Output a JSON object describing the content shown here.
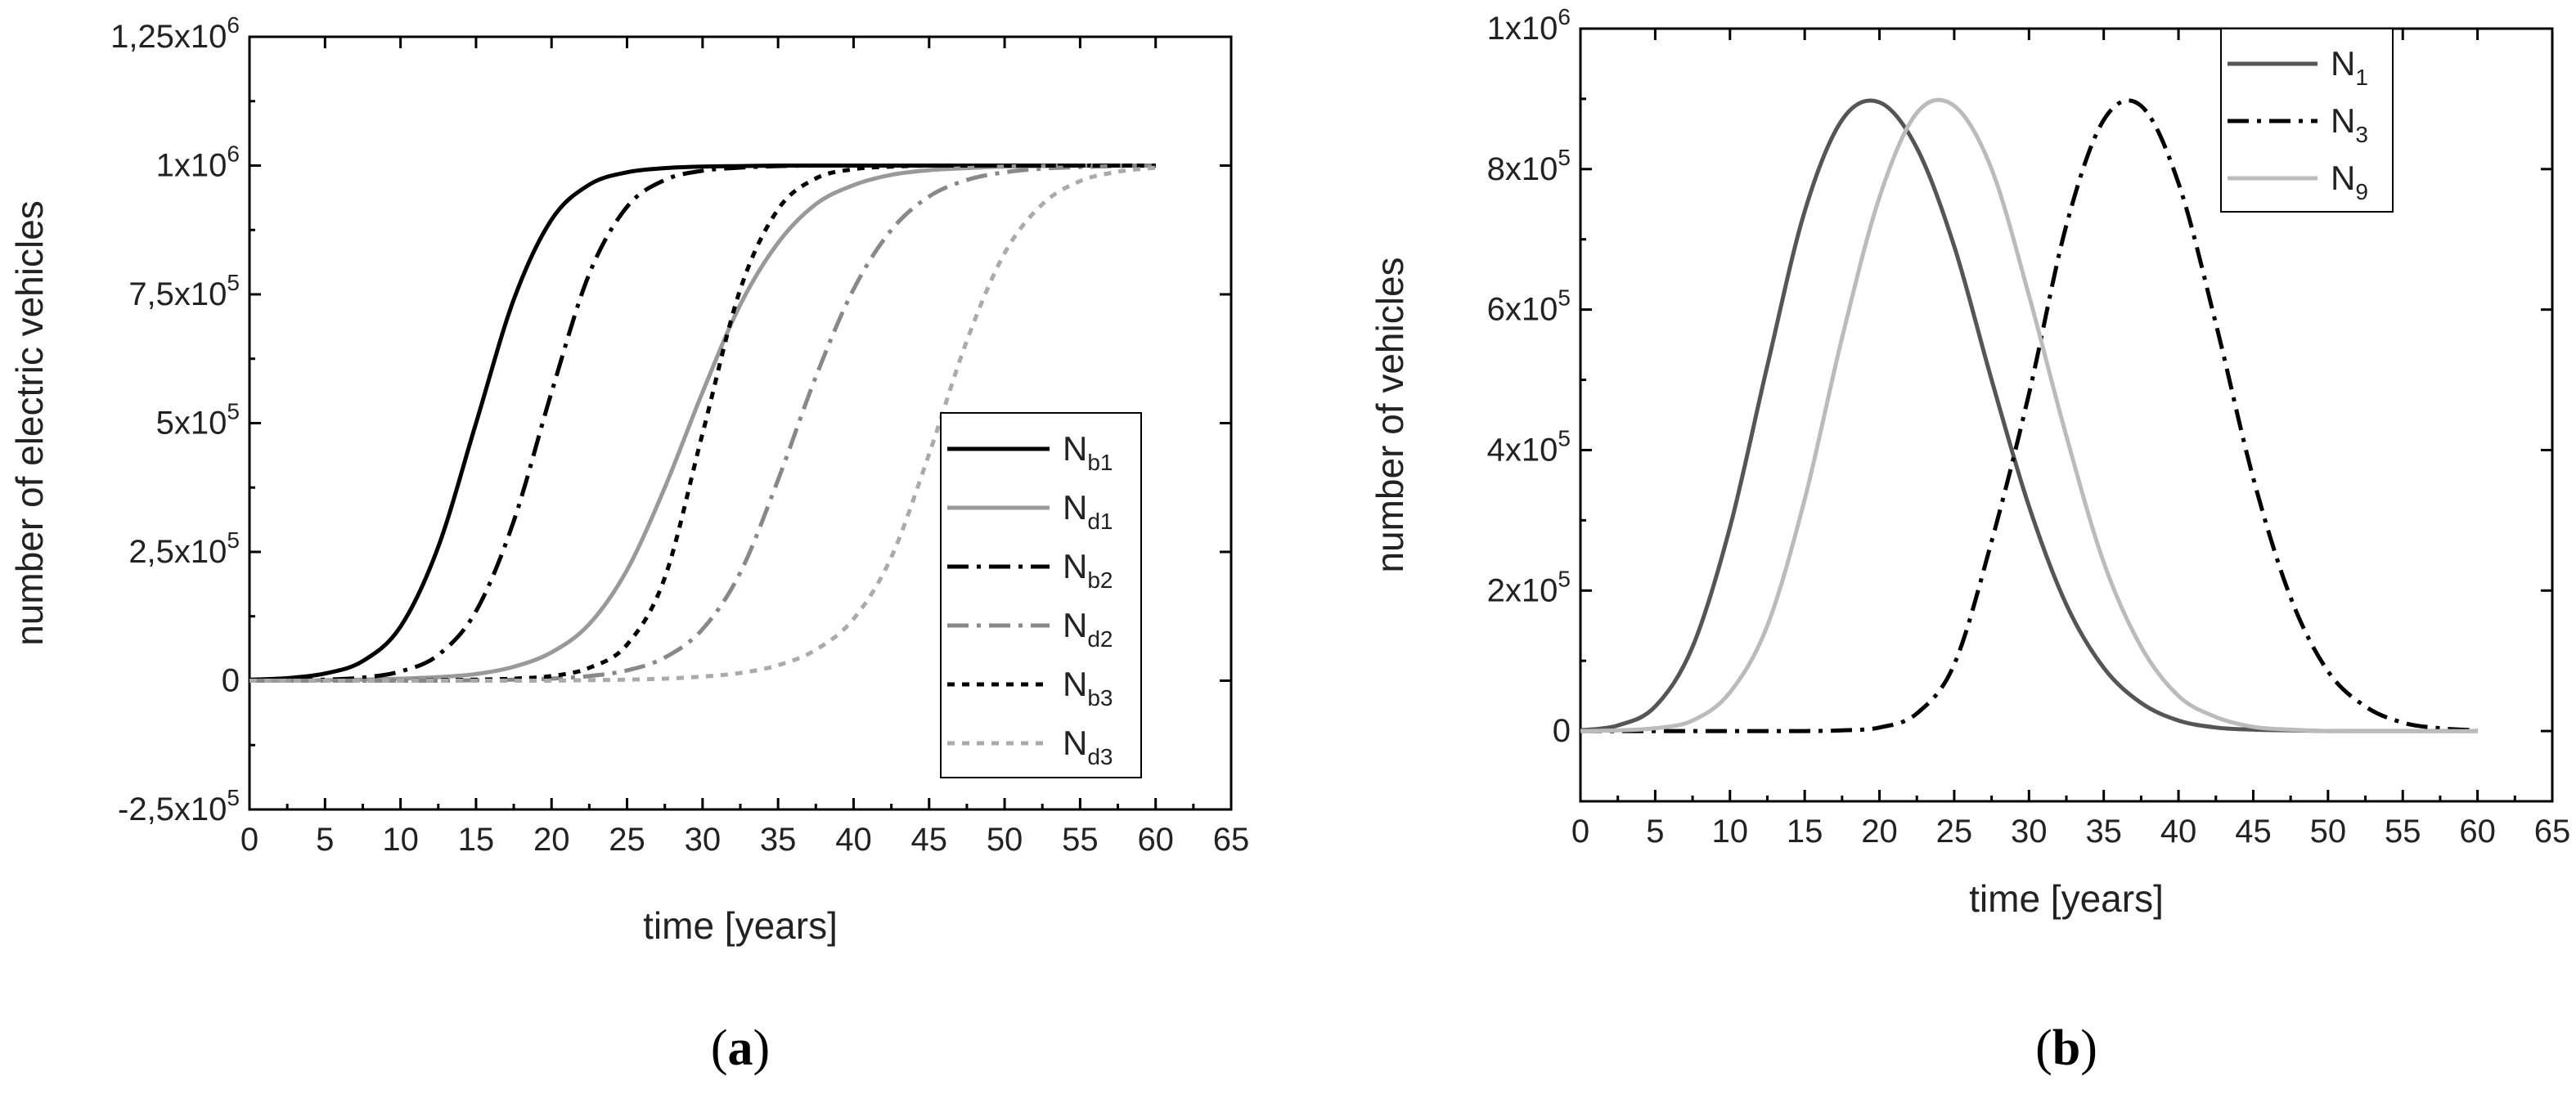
{
  "chart_data": [
    {
      "type": "line",
      "panel_label": "a",
      "xlabel": "time [years]",
      "ylabel": "number of electric vehicles",
      "xlim": [
        0,
        65
      ],
      "ylim": [
        -250000,
        1250000
      ],
      "xticks": [
        0,
        5,
        10,
        15,
        20,
        25,
        30,
        35,
        40,
        45,
        50,
        55,
        60,
        65
      ],
      "yticks": [
        {
          "value": -250000,
          "label": "-2,5x10",
          "exp": "5"
        },
        {
          "value": 0,
          "label": "0",
          "exp": ""
        },
        {
          "value": 250000,
          "label": "2,5x10",
          "exp": "5"
        },
        {
          "value": 500000,
          "label": "5x10",
          "exp": "5"
        },
        {
          "value": 750000,
          "label": "7,5x10",
          "exp": "5"
        },
        {
          "value": 1000000,
          "label": "1x10",
          "exp": "6"
        },
        {
          "value": 1250000,
          "label": "1,25x10",
          "exp": "6"
        }
      ],
      "legend_position": "right",
      "x": [
        0,
        2.5,
        5,
        7.5,
        10,
        12.5,
        15,
        17.5,
        20,
        22.5,
        25,
        27.5,
        30,
        32.5,
        35,
        37.5,
        40,
        42.5,
        45,
        47.5,
        50,
        52.5,
        55,
        57.5,
        60
      ],
      "series": [
        {
          "name": "N",
          "sub": "b1",
          "color": "#000000",
          "dash": "",
          "values": [
            2000,
            5000,
            14000,
            38000,
            105000,
            260000,
            500000,
            740000,
            895000,
            963000,
            987000,
            995000,
            998000,
            999000,
            1000000,
            1000000,
            1000000,
            1000000,
            1000000,
            1000000,
            1000000,
            1000000,
            1000000,
            1000000,
            1000000
          ]
        },
        {
          "name": "N",
          "sub": "d1",
          "color": "#999999",
          "dash": "",
          "values": [
            0,
            0,
            1000,
            2000,
            4000,
            7000,
            13000,
            27000,
            55000,
            110000,
            215000,
            375000,
            560000,
            730000,
            850000,
            925000,
            962000,
            982000,
            991000,
            995000,
            998000,
            999000,
            1000000,
            1000000,
            1000000
          ]
        },
        {
          "name": "N",
          "sub": "b2",
          "color": "#000000",
          "dash": "26,10,5,10",
          "values": [
            0,
            1000,
            2000,
            6000,
            18000,
            50000,
            135000,
            310000,
            560000,
            790000,
            920000,
            972000,
            990000,
            996000,
            999000,
            1000000,
            1000000,
            1000000,
            1000000,
            1000000,
            1000000,
            1000000,
            1000000,
            1000000,
            1000000
          ]
        },
        {
          "name": "N",
          "sub": "d2",
          "color": "#888888",
          "dash": "26,10,5,10",
          "values": [
            0,
            0,
            0,
            0,
            0,
            0,
            1000,
            2000,
            4000,
            9000,
            20000,
            45000,
            100000,
            210000,
            390000,
            590000,
            760000,
            875000,
            940000,
            972000,
            987000,
            994000,
            997000,
            999000,
            1000000
          ]
        },
        {
          "name": "N",
          "sub": "b3",
          "color": "#000000",
          "dash": "9,9",
          "values": [
            0,
            0,
            0,
            0,
            0,
            1000,
            2000,
            4000,
            9000,
            25000,
            70000,
            200000,
            480000,
            760000,
            915000,
            975000,
            993000,
            998000,
            1000000,
            1000000,
            1000000,
            1000000,
            1000000,
            1000000,
            1000000
          ]
        },
        {
          "name": "N",
          "sub": "d3",
          "color": "#aaaaaa",
          "dash": "9,9",
          "values": [
            0,
            0,
            0,
            0,
            0,
            0,
            0,
            0,
            0,
            1000,
            2000,
            4000,
            8000,
            15000,
            30000,
            60000,
            120000,
            240000,
            440000,
            660000,
            830000,
            925000,
            970000,
            988000,
            996000
          ]
        }
      ]
    },
    {
      "type": "line",
      "panel_label": "b",
      "xlabel": "time [years]",
      "ylabel": "number of vehicles",
      "xlim": [
        0,
        65
      ],
      "ylim": [
        -100000,
        1000000
      ],
      "xticks": [
        0,
        5,
        10,
        15,
        20,
        25,
        30,
        35,
        40,
        45,
        50,
        55,
        60,
        65
      ],
      "yticks": [
        {
          "value": 0,
          "label": "0",
          "exp": ""
        },
        {
          "value": 200000,
          "label": "2x10",
          "exp": "5"
        },
        {
          "value": 400000,
          "label": "4x10",
          "exp": "5"
        },
        {
          "value": 600000,
          "label": "6x10",
          "exp": "5"
        },
        {
          "value": 800000,
          "label": "8x10",
          "exp": "5"
        },
        {
          "value": 1000000,
          "label": "1x10",
          "exp": "6"
        }
      ],
      "legend_position": "top",
      "x": [
        0,
        2.5,
        5,
        7.5,
        10,
        12.5,
        15,
        17.5,
        20,
        22.5,
        25,
        27.5,
        30,
        32.5,
        35,
        37.5,
        40,
        42.5,
        45,
        47.5,
        50,
        52.5,
        55,
        57.5,
        60
      ],
      "series": [
        {
          "name": "N",
          "sub": "1",
          "color": "#555555",
          "dash": "",
          "values": [
            1000,
            8000,
            35000,
            120000,
            290000,
            520000,
            740000,
            870000,
            895000,
            830000,
            690000,
            500000,
            320000,
            180000,
            90000,
            40000,
            15000,
            5000,
            2000,
            1000,
            0,
            0,
            0,
            0,
            0
          ]
        },
        {
          "name": "N",
          "sub": "3",
          "color": "#000000",
          "dash": "26,10,5,10",
          "values": [
            0,
            0,
            0,
            0,
            0,
            0,
            0,
            1000,
            5000,
            25000,
            95000,
            270000,
            480000,
            720000,
            870000,
            890000,
            780000,
            580000,
            360000,
            190000,
            85000,
            35000,
            12000,
            4000,
            1000
          ]
        },
        {
          "name": "N",
          "sub": "9",
          "color": "#bbbbbb",
          "dash": "",
          "values": [
            0,
            1000,
            4000,
            15000,
            55000,
            150000,
            330000,
            560000,
            760000,
            880000,
            890000,
            800000,
            620000,
            420000,
            240000,
            120000,
            50000,
            20000,
            6000,
            2000,
            0,
            0,
            0,
            0,
            0
          ]
        }
      ]
    }
  ]
}
